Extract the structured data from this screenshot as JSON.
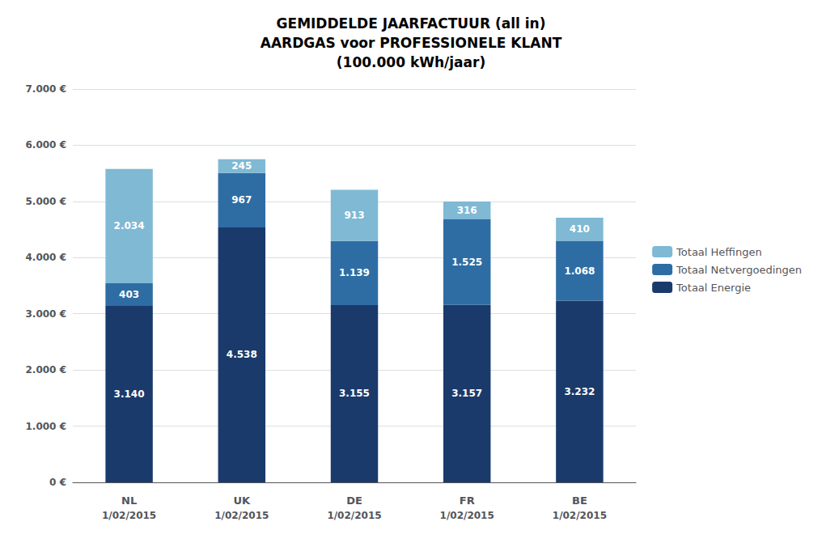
{
  "chart_data": {
    "type": "bar",
    "title": "GEMIDDELDE JAARFACTUUR (all in)\nAARDGAS voor PROFESSIONELE KLANT\n(100.000 kWh/jaar)",
    "categories": [
      "NL",
      "UK",
      "DE",
      "FR",
      "BE"
    ],
    "annotations": [
      {
        "text": "1/02/2015",
        "x": "NL"
      },
      {
        "text": "1/02/2015",
        "x": "UK"
      },
      {
        "text": "1/02/2015",
        "x": "DE"
      },
      {
        "text": "1/02/2015",
        "x": "FR"
      },
      {
        "text": "1/02/2015",
        "x": "BE"
      }
    ],
    "stacked": true,
    "data_labels": true,
    "series": [
      {
        "name": "Totaal Energie",
        "color": "#1a3a6b",
        "values": [
          3140,
          4538,
          3155,
          3157,
          3232
        ],
        "value_labels": [
          "3.140",
          "4.538",
          "3.155",
          "3.157",
          "3.232"
        ]
      },
      {
        "name": "Totaal Netvergoedingen",
        "color": "#2e6da4",
        "values": [
          403,
          967,
          1139,
          1525,
          1068
        ],
        "value_labels": [
          "403",
          "967",
          "1.139",
          "1.525",
          "1.068"
        ]
      },
      {
        "name": "Totaal Heffingen",
        "color": "#7fb9d4",
        "values": [
          2034,
          245,
          913,
          316,
          410
        ],
        "value_labels": [
          "2.034",
          "245",
          "913",
          "316",
          "410"
        ]
      }
    ],
    "ylim": [
      0,
      7000
    ],
    "yticks": [
      {
        "value": 0,
        "label": "0 €"
      },
      {
        "value": 1000,
        "label": "1.000 €"
      },
      {
        "value": 2000,
        "label": "2.000 €"
      },
      {
        "value": 3000,
        "label": "3.000 €"
      },
      {
        "value": 4000,
        "label": "4.000 €"
      },
      {
        "value": 5000,
        "label": "5.000 €"
      },
      {
        "value": 6000,
        "label": "6.000 €"
      },
      {
        "value": 7000,
        "label": "7.000 €"
      }
    ],
    "grid": true,
    "legend": "right"
  }
}
